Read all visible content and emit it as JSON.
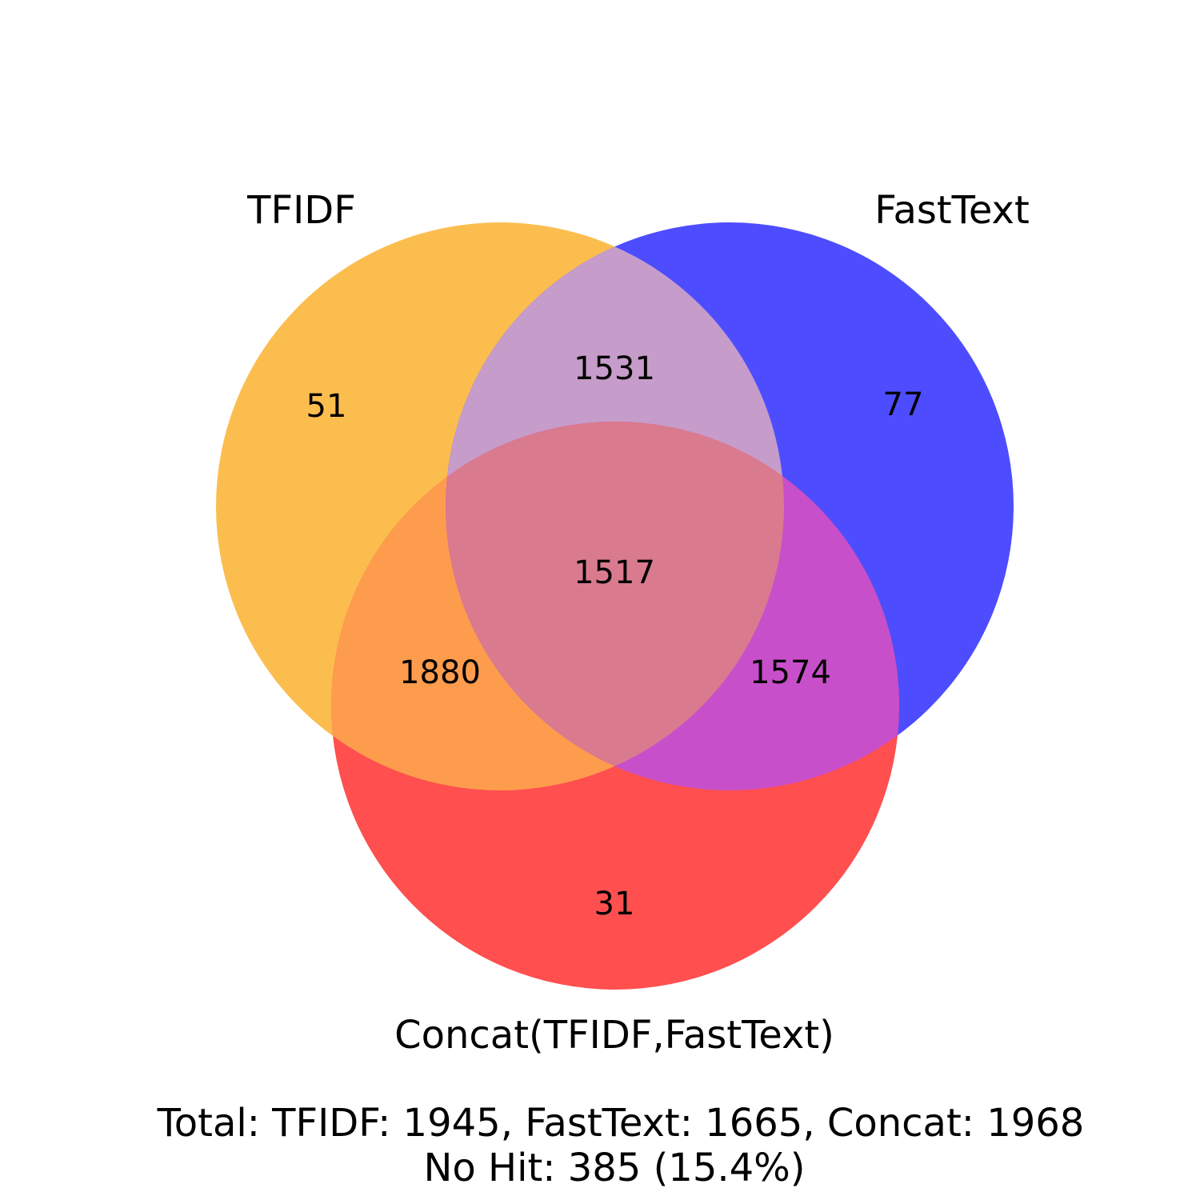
{
  "sets": [
    {
      "key": "tfidf",
      "name": "TFIDF",
      "color": "#FBA71B"
    },
    {
      "key": "fasttext",
      "name": "FastText",
      "color": "#0000FF"
    },
    {
      "key": "concat",
      "name": "Concat(TFIDF,FastText)",
      "color": "#FF0000"
    }
  ],
  "regions": {
    "tfidf_only": "51",
    "fasttext_only": "77",
    "concat_only": "31",
    "tfidf_fasttext": "1531",
    "tfidf_concat": "1880",
    "fasttext_concat": "1574",
    "all_three": "1517"
  },
  "summary": {
    "totals": "Total: TFIDF: 1945, FastText: 1665, Concat: 1968",
    "no_hit": "No Hit: 385 (15.4%)"
  }
}
